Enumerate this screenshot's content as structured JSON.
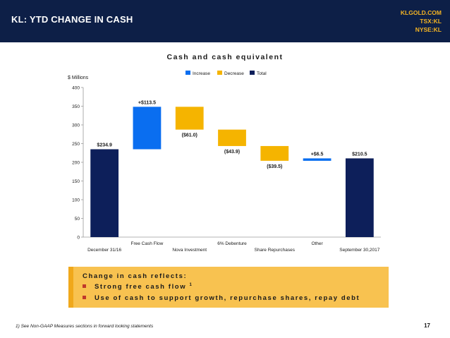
{
  "header": {
    "title": "KL: YTD CHANGE IN CASH",
    "ticker_lines": [
      "KLGOLD.COM",
      "TSX:KL",
      "NYSE:KL"
    ]
  },
  "colors": {
    "increase": "#0a6ef0",
    "decrease": "#f5b400",
    "total": "#0d1f5a",
    "header_bg": "#0d1f47",
    "accent": "#f3b323"
  },
  "chart_data": {
    "type": "waterfall",
    "title": "Cash and cash equivalent",
    "ylabel": "$ Millions",
    "ylim": [
      0,
      400
    ],
    "yticks": [
      0,
      50,
      100,
      150,
      200,
      250,
      300,
      350,
      400
    ],
    "legend": [
      "Increase",
      "Decrease",
      "Total"
    ],
    "legend_position": "top-center",
    "grid": false,
    "categories": [
      "December 31/16",
      "Free Cash Flow",
      "Nova Investment",
      "6% Debenture",
      "Share Repurchases",
      "Other",
      "September 30,2017"
    ],
    "steps": [
      {
        "kind": "total",
        "value": 234.9,
        "label": "$234.9"
      },
      {
        "kind": "increase",
        "value": 113.5,
        "label": "+$113.5"
      },
      {
        "kind": "decrease",
        "value": -61.0,
        "label": "($61.0)"
      },
      {
        "kind": "decrease",
        "value": -43.9,
        "label": "($43.9)"
      },
      {
        "kind": "decrease",
        "value": -39.5,
        "label": "($39.5)"
      },
      {
        "kind": "increase",
        "value": 6.5,
        "label": "+$6.5"
      },
      {
        "kind": "total",
        "value": 210.5,
        "label": "$210.5"
      }
    ]
  },
  "callout": {
    "heading": "Change in cash reflects:",
    "items": [
      {
        "text": "Strong free cash flow",
        "sup": "1"
      },
      {
        "text": "Use of cash to support growth, repurchase shares, repay debt",
        "sup": ""
      }
    ]
  },
  "footnote": "1) See Non-GAAP Measures sections in forward looking statements",
  "page_number": "17"
}
